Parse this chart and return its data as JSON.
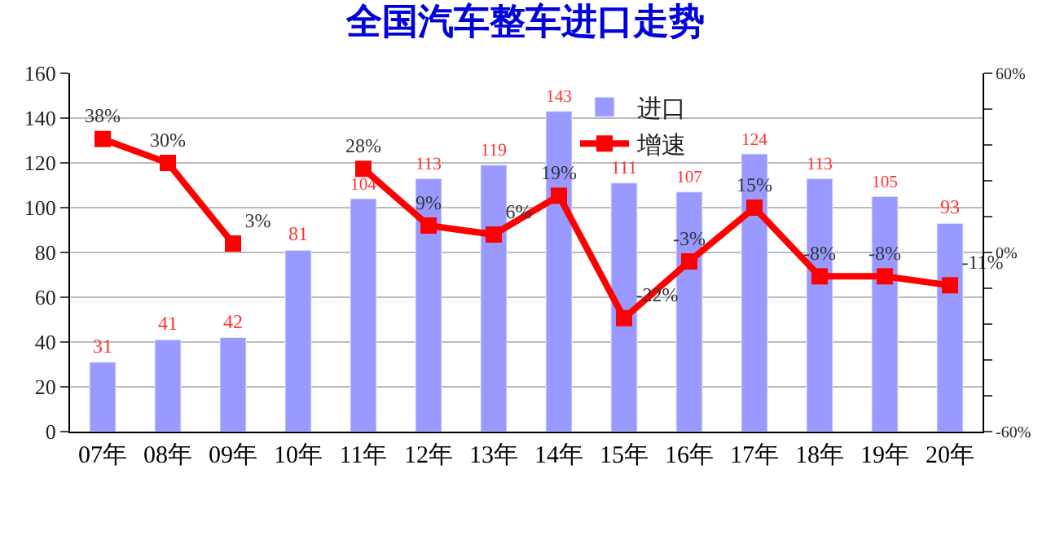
{
  "chart_data": {
    "type": "bar",
    "title": "全国汽车整车进口走势",
    "categories": [
      "07年",
      "08年",
      "09年",
      "10年",
      "11年",
      "12年",
      "13年",
      "14年",
      "15年",
      "16年",
      "17年",
      "18年",
      "19年",
      "20年"
    ],
    "series": [
      {
        "name": "进口",
        "color": "#9999ff",
        "values": [
          31,
          41,
          42,
          81,
          104,
          113,
          119,
          143,
          111,
          107,
          124,
          113,
          105,
          93
        ],
        "value_labels": [
          "31",
          "41",
          "42",
          "81",
          "104",
          "113",
          "119",
          "143",
          "111",
          "107",
          "124",
          "113",
          "105",
          "93"
        ]
      },
      {
        "name": "增速",
        "type": "line",
        "axis": "y2",
        "color": "#ff0000",
        "marker": "square",
        "values": [
          38,
          30,
          3,
          null,
          28,
          9,
          6,
          19,
          -22,
          -3,
          15,
          -8,
          -8,
          -11
        ],
        "value_labels": [
          "38%",
          "30%",
          "3%",
          null,
          "28%",
          "9%",
          "6%",
          "19%",
          "-22%",
          "-3%",
          "15%",
          "-8%",
          "-8%",
          "-11%"
        ]
      }
    ],
    "ylim": [
      0,
      160
    ],
    "yticks": [
      0,
      20,
      40,
      60,
      80,
      100,
      120,
      140,
      160
    ],
    "y2lim": [
      -60,
      60
    ],
    "y2ticks": [
      {
        "value": -60,
        "label": "-60%"
      },
      {
        "value": -48,
        "label": null
      },
      {
        "value": -36,
        "label": null
      },
      {
        "value": -24,
        "label": null
      },
      {
        "value": -12,
        "label": null
      },
      {
        "value": 0,
        "label": "0%"
      },
      {
        "value": 12,
        "label": null
      },
      {
        "value": 24,
        "label": null
      },
      {
        "value": 36,
        "label": null
      },
      {
        "value": 48,
        "label": null
      },
      {
        "value": 60,
        "label": "60%"
      }
    ],
    "grid": "y",
    "legend": "top"
  }
}
